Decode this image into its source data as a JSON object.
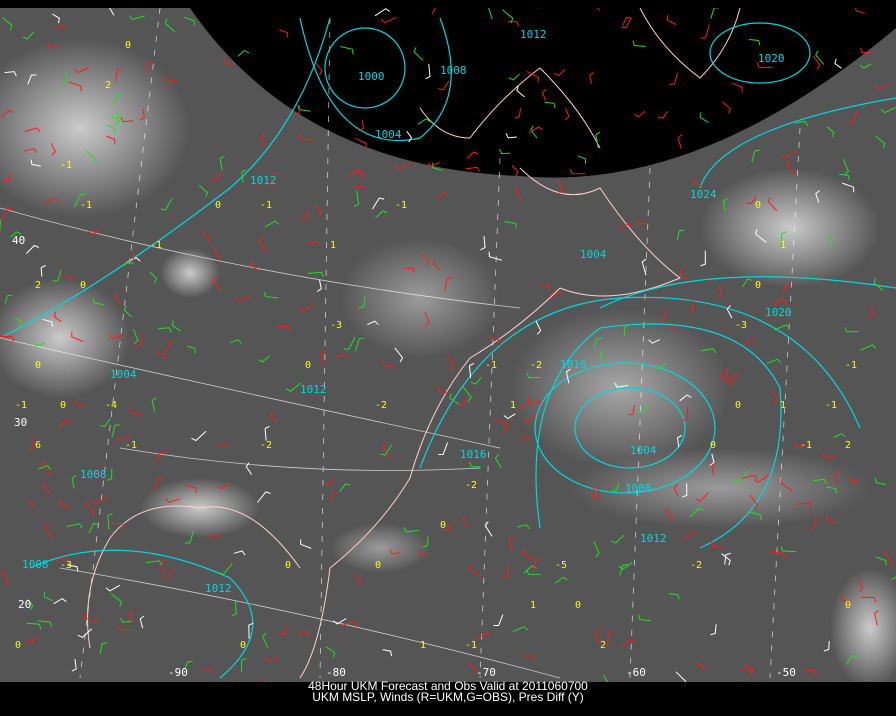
{
  "caption": {
    "line1": "48Hour UKM Forecast and Obs Valid at 2011060700",
    "line2": "UKM MSLP, Winds (R=UKM,G=OBS), Pres Diff (Y)"
  },
  "colors": {
    "satellite_background": "#5a5a5a",
    "polar_mask": "#000000",
    "isobar": "#00d8e0",
    "ukm_wind": "#ff1a1a",
    "obs_wind": "#20e020",
    "pres_diff": "#ffff00",
    "coastline": "#ffd0d0",
    "graticule": "#ffffff"
  },
  "isobar_labels": [
    "1000",
    "1004",
    "1008",
    "1012",
    "1016",
    "1020",
    "1024"
  ],
  "isobar_label_instances": [
    "1000",
    "1004",
    "1012",
    "1008",
    "1004",
    "1012",
    "1016",
    "1004",
    "1008",
    "1012",
    "1024",
    "1020",
    "1020",
    "1012",
    "1008",
    "1012",
    "1016",
    "1004",
    "1008"
  ],
  "latitude_labels": [
    "40",
    "30",
    "20"
  ],
  "longitude_labels": [
    "-90",
    "-80",
    "-70",
    "-60",
    "-50"
  ],
  "pres_diff_values": [
    "-1",
    "-3",
    "-2",
    "-4",
    "-5",
    "-3",
    "-1",
    "0",
    "2",
    "1",
    "-2",
    "-1",
    "0",
    "-1",
    "-3",
    "-2",
    "0",
    "1",
    "2",
    "0",
    "-1",
    "0",
    "2",
    "1",
    "0",
    "-1",
    "1",
    "6",
    "0",
    "2",
    "0",
    "-1",
    "0",
    "-2",
    "-1",
    "0",
    "-1",
    "0",
    "1",
    "0",
    "-1",
    "0",
    "-2",
    "-1",
    "0",
    "1",
    "0",
    "-1",
    "0",
    "0"
  ]
}
